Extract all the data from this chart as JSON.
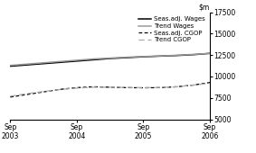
{
  "ylim": [
    5000,
    17500
  ],
  "yticks": [
    5000,
    7500,
    10000,
    12500,
    15000,
    17500
  ],
  "x_labels": [
    "Sep\n2003",
    "Sep\n2004",
    "Sep\n2005",
    "Sep\n2006"
  ],
  "x_positions": [
    0,
    4,
    8,
    12
  ],
  "seas_wages": [
    11200,
    11350,
    11500,
    11650,
    11800,
    11950,
    12100,
    12200,
    12300,
    12380,
    12450,
    12550,
    12700
  ],
  "trend_wages": [
    11300,
    11450,
    11600,
    11750,
    11900,
    12050,
    12150,
    12250,
    12330,
    12400,
    12480,
    12580,
    12700
  ],
  "seas_cgop": [
    7600,
    7900,
    8200,
    8500,
    8700,
    8800,
    8750,
    8700,
    8680,
    8700,
    8800,
    9000,
    9300
  ],
  "trend_cgop": [
    7700,
    8000,
    8250,
    8480,
    8650,
    8750,
    8750,
    8720,
    8700,
    8720,
    8800,
    9000,
    9200
  ],
  "seas_wages_color": "#000000",
  "trend_wages_color": "#999999",
  "seas_cgop_color": "#000000",
  "trend_cgop_color": "#aaaaaa",
  "background_color": "#ffffff",
  "legend_fontsize": 5.0,
  "axis_fontsize": 5.5,
  "tick_fontsize": 5.5
}
